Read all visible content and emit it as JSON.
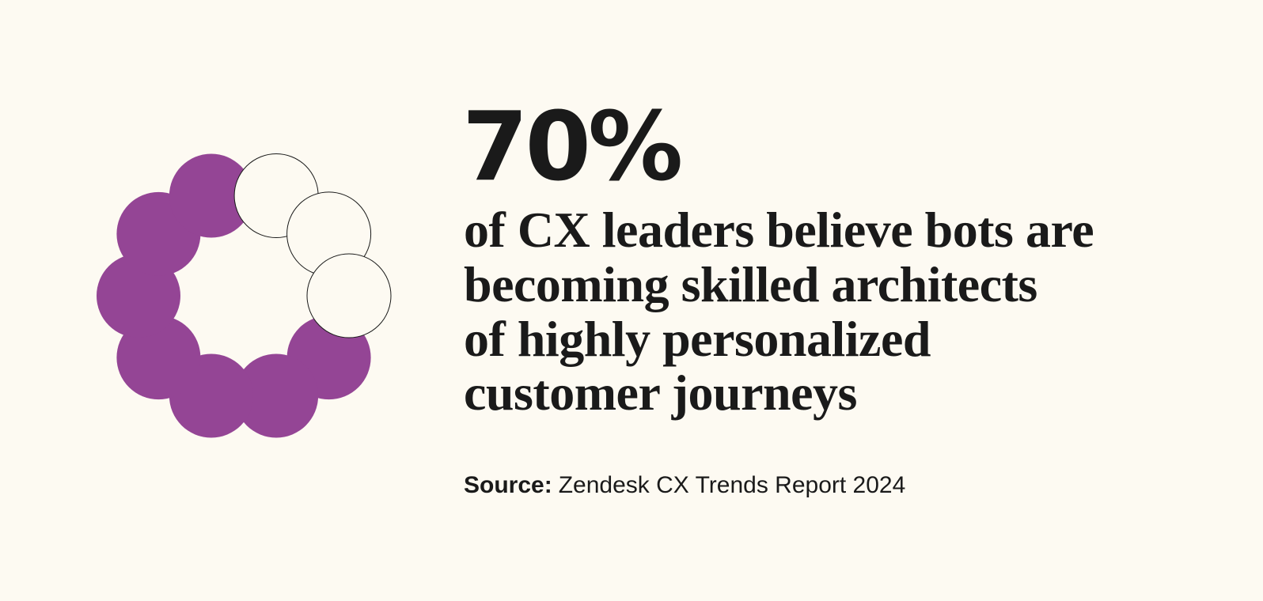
{
  "chart_data": {
    "type": "dot-ring",
    "values": [
      70
    ],
    "value_labels": [
      "70%"
    ],
    "description": [
      "of CX leaders believe bots are",
      "becoming skilled architects",
      "of highly personalized",
      "customer journeys"
    ],
    "source": {
      "label": "Source:",
      "text": "Zendesk CX Trends Report 2024"
    },
    "color": "#944595"
  }
}
